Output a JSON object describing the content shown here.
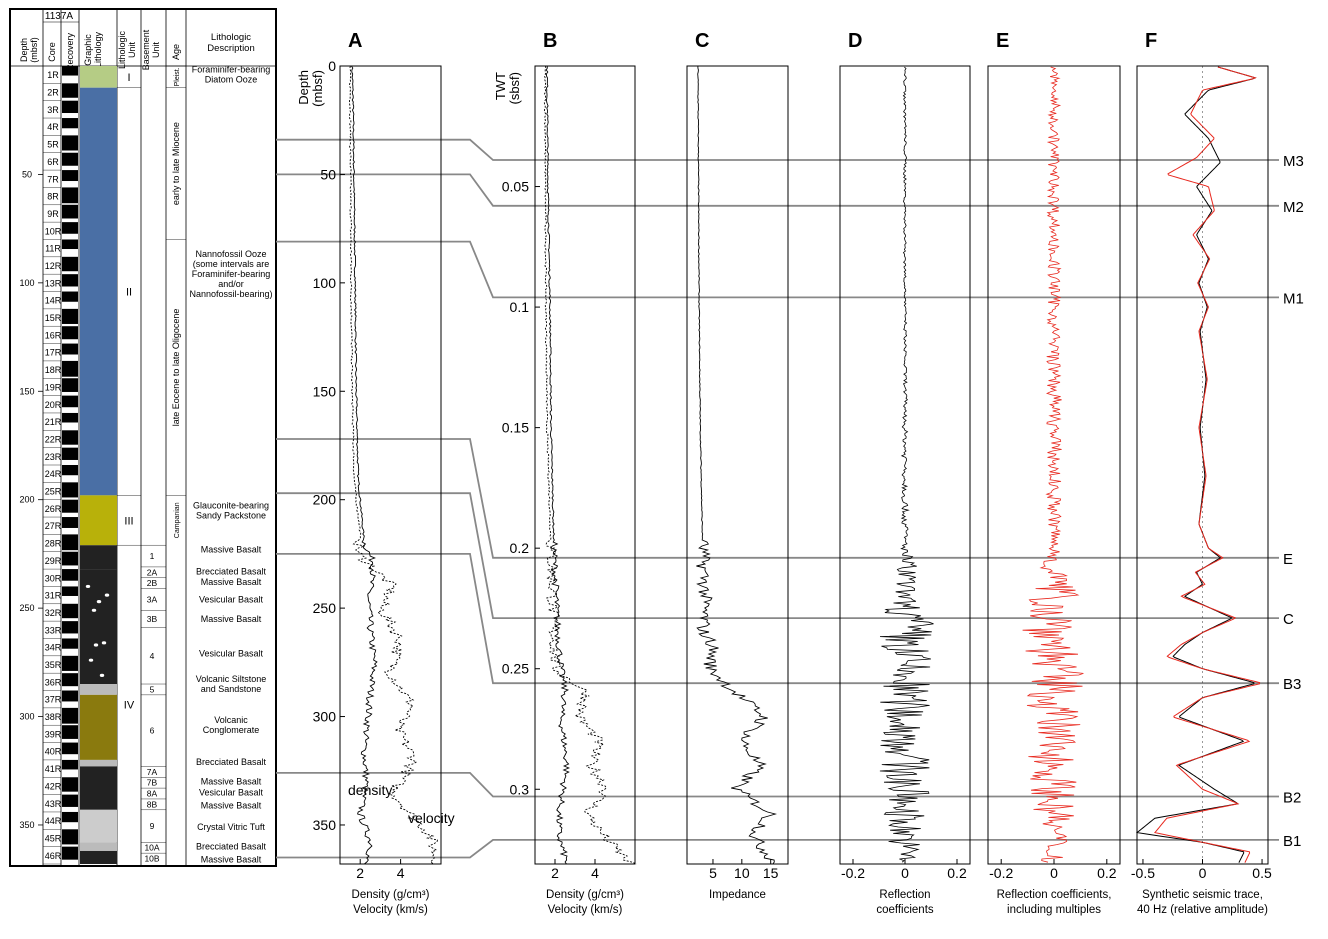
{
  "figure": {
    "log": {
      "site": "1137A",
      "headers": [
        "Depth (mbsf)",
        "Core",
        "Recovery",
        "Graphic Lithology",
        "Lithologic Unit",
        "Basement Unit",
        "Age",
        "Lithologic Description"
      ],
      "depth_ticks": [
        50,
        100,
        150,
        200,
        250,
        300,
        350
      ],
      "cores": [
        "1R",
        "2R",
        "3R",
        "4R",
        "5R",
        "6R",
        "7R",
        "8R",
        "9R",
        "10R",
        "11R",
        "12R",
        "13R",
        "14R",
        "15R",
        "16R",
        "17R",
        "18R",
        "19R",
        "20R",
        "21R",
        "22R",
        "23R",
        "24R",
        "25R",
        "26R",
        "27R",
        "28R",
        "29R",
        "30R",
        "31R",
        "32R",
        "33R",
        "34R",
        "35R",
        "36R",
        "37R",
        "38R",
        "39R",
        "40R",
        "41R",
        "42R",
        "43R",
        "44R",
        "45R",
        "46R"
      ],
      "lith_units": [
        {
          "label": "I",
          "top": 0,
          "bottom": 10
        },
        {
          "label": "II",
          "top": 10,
          "bottom": 198
        },
        {
          "label": "III",
          "top": 198,
          "bottom": 221
        },
        {
          "label": "IV",
          "top": 221,
          "bottom": 368
        }
      ],
      "basement_units": [
        {
          "label": "1",
          "top": 221,
          "bottom": 231
        },
        {
          "label": "2A",
          "top": 231,
          "bottom": 236
        },
        {
          "label": "2B",
          "top": 236,
          "bottom": 241
        },
        {
          "label": "3A",
          "top": 241,
          "bottom": 251
        },
        {
          "label": "3B",
          "top": 251,
          "bottom": 259
        },
        {
          "label": "4",
          "top": 259,
          "bottom": 285
        },
        {
          "label": "5",
          "top": 285,
          "bottom": 290
        },
        {
          "label": "6",
          "top": 290,
          "bottom": 323
        },
        {
          "label": "7A",
          "top": 323,
          "bottom": 328
        },
        {
          "label": "7B",
          "top": 328,
          "bottom": 333
        },
        {
          "label": "8A",
          "top": 333,
          "bottom": 338
        },
        {
          "label": "8B",
          "top": 338,
          "bottom": 343
        },
        {
          "label": "9",
          "top": 343,
          "bottom": 358
        },
        {
          "label": "10A",
          "top": 358,
          "bottom": 363
        },
        {
          "label": "10B",
          "top": 363,
          "bottom": 368
        }
      ],
      "ages": [
        {
          "label": "Pleist.",
          "top": 0,
          "bottom": 10
        },
        {
          "label": "early to late Miocene",
          "top": 10,
          "bottom": 80
        },
        {
          "label": "late Eocene to late Oligocene",
          "top": 80,
          "bottom": 198
        },
        {
          "label": "Campanian",
          "top": 198,
          "bottom": 221
        }
      ],
      "descriptions": [
        {
          "lines": [
            "Foraminifer-bearing",
            "Diatom Ooze"
          ],
          "depth": 4
        },
        {
          "lines": [
            "Nannofossil Ooze",
            "(some intervals are",
            "Foraminifer-bearing",
            "and/or",
            "Nannofossil-bearing)"
          ],
          "depth": 96
        },
        {
          "lines": [
            "Glauconite-bearing",
            "Sandy Packstone"
          ],
          "depth": 205
        },
        {
          "lines": [
            "Massive Basalt"
          ],
          "depth": 223
        },
        {
          "lines": [
            "Brecciated Basalt"
          ],
          "depth": 233
        },
        {
          "lines": [
            "Massive Basalt"
          ],
          "depth": 238
        },
        {
          "lines": [
            "Vesicular Basalt"
          ],
          "depth": 246
        },
        {
          "lines": [
            "Massive Basalt"
          ],
          "depth": 255
        },
        {
          "lines": [
            "Vesicular Basalt"
          ],
          "depth": 271
        },
        {
          "lines": [
            "Volcanic Siltstone",
            "and Sandstone"
          ],
          "depth": 285
        },
        {
          "lines": [
            "Volcanic",
            "Conglomerate"
          ],
          "depth": 304
        },
        {
          "lines": [
            "Brecciated Basalt"
          ],
          "depth": 321
        },
        {
          "lines": [
            "Massive Basalt"
          ],
          "depth": 330
        },
        {
          "lines": [
            "Vesicular Basalt"
          ],
          "depth": 335
        },
        {
          "lines": [
            "Massive Basalt"
          ],
          "depth": 341
        },
        {
          "lines": [
            "Crystal Vitric Tuft"
          ],
          "depth": 351
        },
        {
          "lines": [
            "Brecciated Basalt"
          ],
          "depth": 360
        },
        {
          "lines": [
            "Massive Basalt"
          ],
          "depth": 366
        }
      ],
      "colors": {
        "unit_I": "#b5cc85",
        "unit_II": "#4a6fa5",
        "unit_III": "#b8b10a",
        "basalt": "#222222",
        "conglomerate": "#8a7a0e",
        "siltstone": "#bbbbbb",
        "tuff": "#cccccc"
      }
    },
    "correlation_depths": [
      34,
      50,
      81,
      172,
      197,
      225,
      326,
      365
    ]
  },
  "chart_data": [
    {
      "type": "line",
      "panel": "A",
      "y_axis_title": [
        "Depth",
        "(mbsf)"
      ],
      "yticks": [
        0,
        50,
        100,
        150,
        200,
        250,
        300,
        350
      ],
      "ylim": [
        0,
        368
      ],
      "xlabel": [
        "Density (g/cm³)",
        "Velocity (km/s)"
      ],
      "xticks": [
        "2",
        "4"
      ],
      "xlim": [
        1,
        6
      ],
      "annotations": [
        "density",
        "velocity"
      ],
      "series": [
        {
          "name": "density",
          "depth": [
            0,
            20,
            60,
            100,
            150,
            190,
            200,
            220,
            230,
            245,
            260,
            275,
            290,
            300,
            315,
            330,
            345,
            360,
            368
          ],
          "values": [
            1.6,
            1.65,
            1.7,
            1.75,
            1.8,
            1.9,
            2.0,
            2.2,
            2.7,
            2.4,
            2.5,
            2.7,
            2.5,
            2.4,
            2.2,
            2.3,
            2.0,
            2.6,
            2.2
          ]
        },
        {
          "name": "velocity",
          "depth": [
            0,
            50,
            100,
            150,
            190,
            200,
            215,
            225,
            240,
            250,
            265,
            280,
            295,
            305,
            320,
            335,
            345,
            355,
            368
          ],
          "values": [
            1.5,
            1.52,
            1.55,
            1.6,
            1.7,
            1.8,
            2.0,
            1.9,
            3.6,
            3.0,
            4.0,
            3.5,
            4.6,
            3.8,
            4.7,
            3.6,
            4.5,
            5.5,
            5.8
          ]
        }
      ]
    },
    {
      "type": "line",
      "panel": "B",
      "y_axis_title": [
        "TWT",
        "(sbsf)"
      ],
      "yticks": [
        0.05,
        0.1,
        0.15,
        0.2,
        0.25,
        0.3
      ],
      "ylim": [
        0,
        0.331
      ],
      "xlabel": [
        "Density (g/cm³)",
        "Velocity (km/s)"
      ],
      "xticks": [
        "2",
        "4"
      ],
      "xlim": [
        1,
        6
      ],
      "series": [
        {
          "name": "density",
          "twt": [
            0,
            0.05,
            0.1,
            0.15,
            0.2,
            0.23,
            0.25,
            0.26,
            0.27,
            0.29,
            0.3,
            0.31,
            0.32,
            0.331
          ],
          "values": [
            1.6,
            1.65,
            1.75,
            1.8,
            1.95,
            2.1,
            2.3,
            2.5,
            2.3,
            2.6,
            2.4,
            2.2,
            2.2,
            2.6
          ]
        },
        {
          "name": "velocity",
          "twt": [
            0,
            0.05,
            0.1,
            0.15,
            0.2,
            0.23,
            0.25,
            0.26,
            0.27,
            0.28,
            0.29,
            0.3,
            0.31,
            0.32,
            0.331
          ],
          "values": [
            1.5,
            1.52,
            1.55,
            1.6,
            1.8,
            1.9,
            2.0,
            3.6,
            3.2,
            4.2,
            3.8,
            4.6,
            3.6,
            4.5,
            5.8
          ]
        }
      ]
    },
    {
      "type": "line",
      "panel": "C",
      "xlabel": [
        "Impedance"
      ],
      "xticks": [
        "5",
        "10",
        "15"
      ],
      "xlim": [
        0.5,
        18
      ],
      "series": [
        {
          "name": "impedance",
          "twt": [
            0,
            0.05,
            0.1,
            0.15,
            0.2,
            0.22,
            0.235,
            0.24,
            0.25,
            0.26,
            0.27,
            0.28,
            0.29,
            0.3,
            0.31,
            0.32,
            0.331
          ],
          "values": [
            2.4,
            2.5,
            2.6,
            2.8,
            3.2,
            3.6,
            3.3,
            5,
            4.5,
            9,
            14,
            10,
            13,
            9,
            15,
            12,
            16
          ]
        }
      ]
    },
    {
      "type": "line",
      "panel": "D",
      "xlabel": [
        "Reflection",
        "coefficients"
      ],
      "xticks": [
        "-0.2",
        "0",
        "0.2"
      ],
      "xlim": [
        -0.25,
        0.25
      ],
      "series": [
        {
          "name": "reflection coefficients",
          "amplitude_envelope": {
            "twt": [
              0,
              0.11,
              0.2,
              0.21,
              0.22,
              0.23,
              0.26,
              0.3,
              0.331
            ],
            "values": [
              0.005,
              0.005,
              0.015,
              0.06,
              0.03,
              0.12,
              0.1,
              0.1,
              0.05
            ]
          }
        }
      ]
    },
    {
      "type": "line",
      "panel": "E",
      "xlabel": [
        "Reflection coefficients,",
        "including multiples"
      ],
      "xticks": [
        "-0.2",
        "0",
        "0.2"
      ],
      "xlim": [
        -0.25,
        0.25
      ],
      "series": [
        {
          "name": "reflection coefficients with multiples",
          "color": "#e8281e",
          "amplitude_envelope": {
            "twt": [
              0,
              0.2,
              0.22,
              0.23,
              0.3,
              0.331
            ],
            "values": [
              0.02,
              0.03,
              0.1,
              0.12,
              0.09,
              0.05
            ]
          }
        }
      ]
    },
    {
      "type": "line",
      "panel": "F",
      "xlabel": [
        "Synthetic seismic trace,",
        "40 Hz (relative amplitude)"
      ],
      "xticks": [
        "-0.5",
        "0",
        "0.5"
      ],
      "xlim": [
        -0.55,
        0.55
      ],
      "horizons": [
        {
          "label": "M3",
          "twt": 0.039
        },
        {
          "label": "M2",
          "twt": 0.058
        },
        {
          "label": "M1",
          "twt": 0.096
        },
        {
          "label": "E",
          "twt": 0.204
        },
        {
          "label": "C",
          "twt": 0.229
        },
        {
          "label": "B3",
          "twt": 0.256
        },
        {
          "label": "B2",
          "twt": 0.303
        },
        {
          "label": "B1",
          "twt": 0.321
        }
      ],
      "series": [
        {
          "name": "synthetic trace",
          "color": "#000000",
          "twt": [
            0,
            0.005,
            0.01,
            0.02,
            0.03,
            0.04,
            0.05,
            0.06,
            0.07,
            0.08,
            0.09,
            0.1,
            0.11,
            0.13,
            0.15,
            0.17,
            0.19,
            0.2,
            0.204,
            0.21,
            0.215,
            0.22,
            0.229,
            0.235,
            0.24,
            0.245,
            0.25,
            0.256,
            0.262,
            0.27,
            0.28,
            0.29,
            0.3,
            0.306,
            0.312,
            0.318,
            0.322,
            0.326,
            0.331
          ],
          "values": [
            0.1,
            0.45,
            0.05,
            -0.15,
            0.05,
            0.15,
            -0.05,
            0.08,
            -0.05,
            0.05,
            -0.03,
            0.04,
            -0.02,
            0.03,
            -0.02,
            0.02,
            -0.03,
            0.05,
            0.15,
            -0.05,
            0.0,
            -0.15,
            0.25,
            0.0,
            -0.15,
            -0.25,
            0.0,
            0.45,
            0.0,
            -0.2,
            0.35,
            -0.2,
            0.1,
            0.3,
            -0.4,
            -0.55,
            0.0,
            0.35,
            0.3
          ]
        },
        {
          "name": "synthetic trace with multiples",
          "color": "#e8281e",
          "twt": [
            0,
            0.005,
            0.01,
            0.02,
            0.03,
            0.038,
            0.045,
            0.05,
            0.06,
            0.07,
            0.08,
            0.09,
            0.1,
            0.11,
            0.13,
            0.15,
            0.17,
            0.19,
            0.2,
            0.204,
            0.21,
            0.215,
            0.22,
            0.229,
            0.235,
            0.24,
            0.245,
            0.25,
            0.256,
            0.262,
            0.27,
            0.28,
            0.29,
            0.3,
            0.306,
            0.312,
            0.318,
            0.322,
            0.326,
            0.331
          ],
          "values": [
            0.1,
            0.45,
            0.0,
            -0.1,
            0.1,
            -0.05,
            -0.3,
            0.05,
            0.1,
            -0.08,
            0.06,
            -0.04,
            0.05,
            -0.03,
            0.04,
            -0.03,
            0.03,
            -0.03,
            0.05,
            0.17,
            -0.06,
            0.02,
            -0.18,
            0.28,
            0.0,
            -0.18,
            -0.3,
            0.0,
            0.5,
            0.0,
            -0.25,
            0.4,
            -0.22,
            0.0,
            0.3,
            -0.3,
            -0.4,
            0.0,
            0.4,
            0.35
          ]
        }
      ]
    }
  ]
}
